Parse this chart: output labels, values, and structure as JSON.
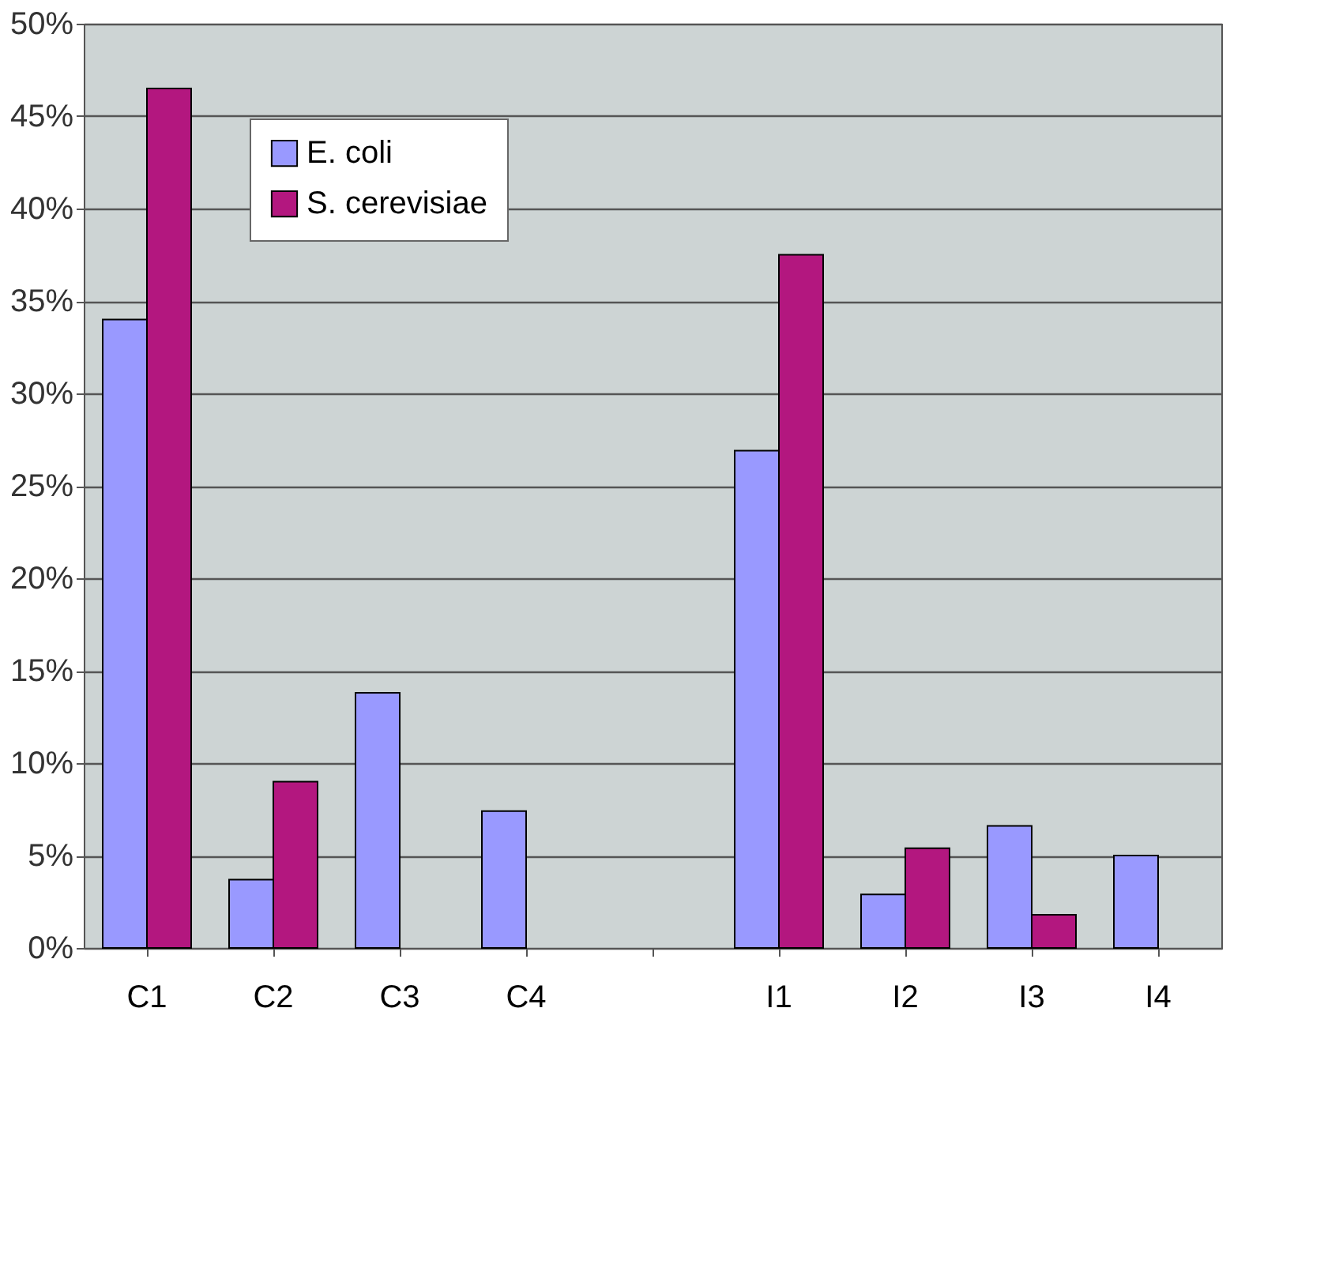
{
  "chart_data": {
    "type": "bar",
    "categories": [
      "C1",
      "C2",
      "C3",
      "C4",
      null,
      "I1",
      "I2",
      "I3",
      "I4"
    ],
    "series": [
      {
        "name": "E. coli",
        "color": "#9999ff",
        "values": [
          34.0,
          3.7,
          13.8,
          7.4,
          null,
          26.9,
          2.9,
          6.6,
          5.0
        ]
      },
      {
        "name": "S. cerevisiae",
        "color": "#b3177f",
        "values": [
          46.5,
          9.0,
          null,
          null,
          null,
          37.5,
          5.4,
          1.8,
          null
        ]
      }
    ],
    "ylim": [
      0,
      50
    ],
    "yticks": [
      {
        "value": 0,
        "label": "0%"
      },
      {
        "value": 5,
        "label": "5%"
      },
      {
        "value": 10,
        "label": "10%"
      },
      {
        "value": 15,
        "label": "15%"
      },
      {
        "value": 20,
        "label": "20%"
      },
      {
        "value": 25,
        "label": "25%"
      },
      {
        "value": 30,
        "label": "30%"
      },
      {
        "value": 35,
        "label": "35%"
      },
      {
        "value": 40,
        "label": "40%"
      },
      {
        "value": 45,
        "label": "45%"
      },
      {
        "value": 50,
        "label": "50%"
      }
    ],
    "grid": "y",
    "legend": "top left"
  }
}
